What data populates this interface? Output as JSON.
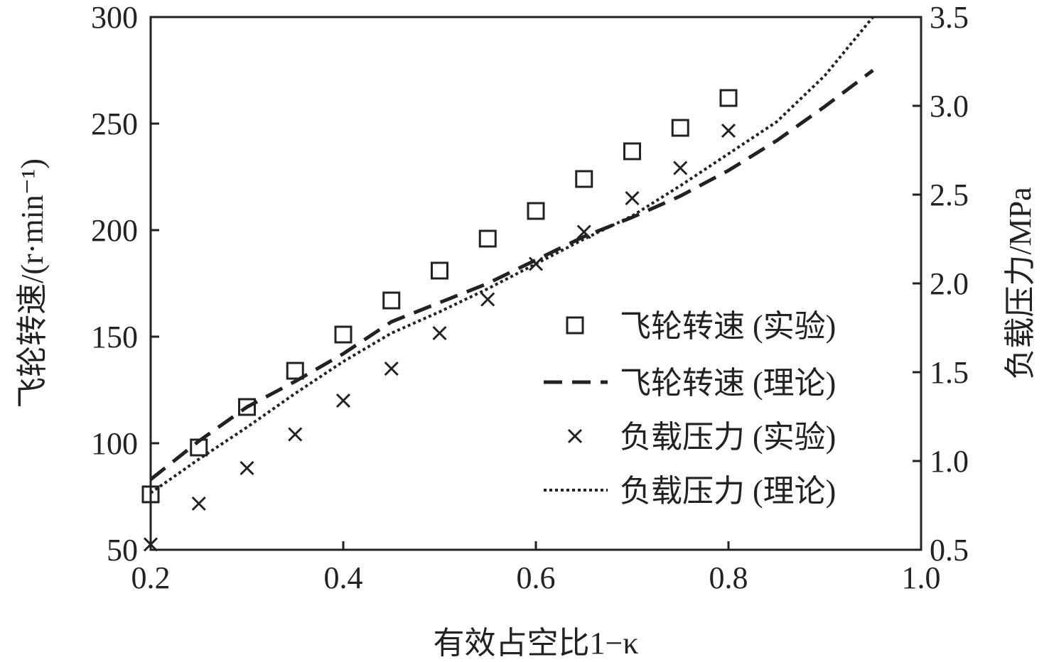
{
  "chart_data": {
    "type": "scatter",
    "xlabel": "有效占空比1−κ",
    "ylabel_left": "飞轮转速/(r·min⁻¹)",
    "ylabel_right": "负载压力/MPa",
    "xlim": [
      0.2,
      1.0
    ],
    "ylim_left": [
      50,
      300
    ],
    "ylim_right": [
      0.5,
      3.5
    ],
    "xticks": [
      "0.2",
      "0.4",
      "0.6",
      "0.8",
      "1.0"
    ],
    "yticks_left": [
      "50",
      "100",
      "150",
      "200",
      "250",
      "300"
    ],
    "yticks_right": [
      "0.5",
      "1.0",
      "1.5",
      "2.0",
      "2.5",
      "3.0",
      "3.5"
    ],
    "grid": false,
    "legend_position": "right",
    "series": [
      {
        "name": "飞轮转速 (实验)",
        "axis": "left",
        "style": "square-marker",
        "x": [
          0.2,
          0.25,
          0.3,
          0.35,
          0.4,
          0.45,
          0.5,
          0.55,
          0.6,
          0.65,
          0.7,
          0.75,
          0.8
        ],
        "y": [
          76,
          98,
          117,
          134,
          151,
          167,
          181,
          196,
          209,
          224,
          237,
          248,
          262
        ]
      },
      {
        "name": "飞轮转速 (理论)",
        "axis": "left",
        "style": "dashed",
        "x": [
          0.2,
          0.25,
          0.3,
          0.35,
          0.4,
          0.45,
          0.5,
          0.55,
          0.6,
          0.65,
          0.7,
          0.75,
          0.8,
          0.85,
          0.9,
          0.95
        ],
        "y": [
          83,
          101,
          117,
          129,
          142,
          157,
          166,
          175,
          186,
          197,
          206,
          216,
          228,
          242,
          258,
          275
        ]
      },
      {
        "name": "负载压力 (实验)",
        "axis": "right",
        "style": "x-marker",
        "x": [
          0.2,
          0.25,
          0.3,
          0.35,
          0.4,
          0.45,
          0.5,
          0.55,
          0.6,
          0.65,
          0.7,
          0.75,
          0.8
        ],
        "y": [
          0.53,
          0.76,
          0.96,
          1.15,
          1.34,
          1.52,
          1.72,
          1.91,
          2.11,
          2.29,
          2.48,
          2.65,
          2.86
        ]
      },
      {
        "name": "负载压力 (理论)",
        "axis": "right",
        "style": "dotted",
        "x": [
          0.2,
          0.25,
          0.3,
          0.35,
          0.4,
          0.45,
          0.5,
          0.55,
          0.6,
          0.65,
          0.7,
          0.75,
          0.8,
          0.85,
          0.9,
          0.95
        ],
        "y": [
          0.82,
          1.01,
          1.19,
          1.38,
          1.56,
          1.72,
          1.84,
          1.97,
          2.11,
          2.25,
          2.38,
          2.55,
          2.73,
          2.91,
          3.17,
          3.5
        ]
      }
    ]
  }
}
